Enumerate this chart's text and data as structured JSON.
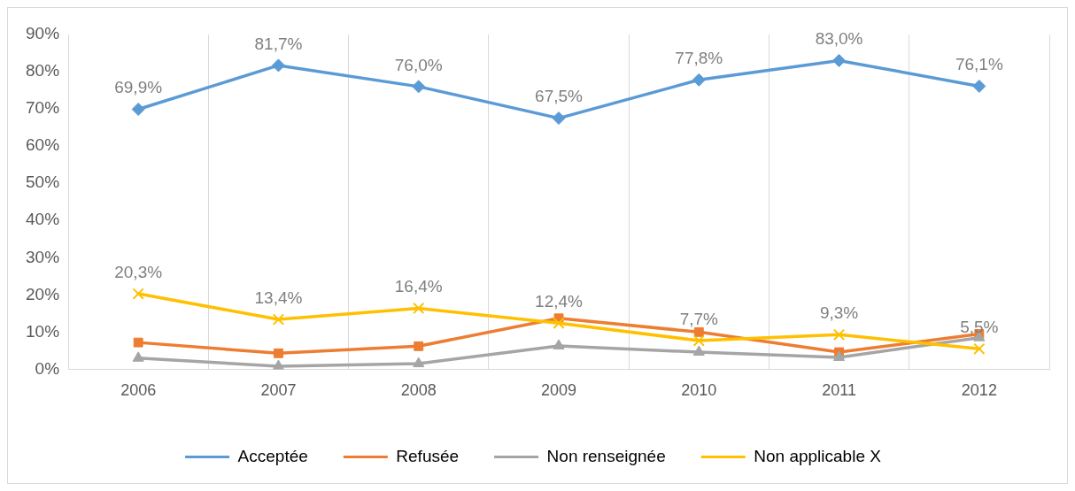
{
  "chart_data": {
    "type": "line",
    "categories": [
      "2006",
      "2007",
      "2008",
      "2009",
      "2010",
      "2011",
      "2012"
    ],
    "ylim": [
      0,
      90
    ],
    "yticks": [
      {
        "value": 0,
        "label": "0%"
      },
      {
        "value": 10,
        "label": "10%"
      },
      {
        "value": 20,
        "label": "20%"
      },
      {
        "value": 30,
        "label": "30%"
      },
      {
        "value": 40,
        "label": "40%"
      },
      {
        "value": 50,
        "label": "50%"
      },
      {
        "value": 60,
        "label": "60%"
      },
      {
        "value": 70,
        "label": "70%"
      },
      {
        "value": 80,
        "label": "80%"
      },
      {
        "value": 90,
        "label": "90%"
      }
    ],
    "grid": "x",
    "legend": "bottom",
    "line_style": "solid",
    "series": [
      {
        "name": "Acceptée",
        "color": "#5b9bd5",
        "marker": "diamond",
        "values": [
          69.9,
          81.7,
          76.0,
          67.5,
          77.8,
          83.0,
          76.1
        ],
        "value_labels": [
          "69,9%",
          "81,7%",
          "76,0%",
          "67,5%",
          "77,8%",
          "83,0%",
          "76,1%"
        ]
      },
      {
        "name": "Refusée",
        "color": "#ed7d31",
        "marker": "square",
        "values": [
          7.2,
          4.3,
          6.2,
          13.7,
          10.0,
          4.6,
          9.5
        ]
      },
      {
        "name": "Non renseignée",
        "color": "#a5a5a5",
        "marker": "triangle",
        "values": [
          3.0,
          0.8,
          1.5,
          6.3,
          4.6,
          3.2,
          8.5
        ]
      },
      {
        "name": "Non applicable X",
        "color": "#ffc000",
        "marker": "cross",
        "values": [
          20.3,
          13.4,
          16.4,
          12.4,
          7.7,
          9.3,
          5.5
        ],
        "value_labels": [
          "20,3%",
          "13,4%",
          "16,4%",
          "12,4%",
          "7,7%",
          "9,3%",
          "5,5%"
        ]
      }
    ]
  }
}
